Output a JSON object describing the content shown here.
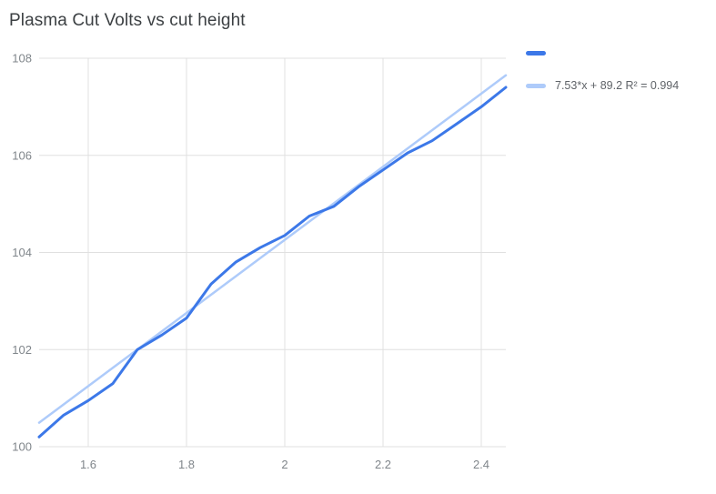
{
  "chart_data": {
    "type": "line",
    "title": "Plasma Cut Volts vs cut height",
    "xlabel": "",
    "ylabel": "",
    "xlim": [
      1.5,
      2.45
    ],
    "ylim": [
      100,
      108
    ],
    "x_ticks": [
      1.6,
      1.8,
      2,
      2.2,
      2.4
    ],
    "x_tick_labels": [
      "1.6",
      "1.8",
      "2",
      "2.2",
      "2.4"
    ],
    "y_ticks": [
      100,
      102,
      104,
      106,
      108
    ],
    "y_tick_labels": [
      "100",
      "102",
      "104",
      "106",
      "108"
    ],
    "grid": true,
    "legend_position": "top-right",
    "x": [
      1.5,
      1.55,
      1.6,
      1.65,
      1.7,
      1.75,
      1.8,
      1.85,
      1.9,
      1.95,
      2.0,
      2.05,
      2.1,
      2.15,
      2.2,
      2.25,
      2.3,
      2.35,
      2.4,
      2.45
    ],
    "series": [
      {
        "name": "",
        "color": "#3c78e8",
        "values": [
          100.2,
          100.65,
          100.95,
          101.3,
          102.0,
          102.3,
          102.65,
          103.35,
          103.8,
          104.1,
          104.35,
          104.75,
          104.95,
          105.35,
          105.7,
          106.05,
          106.3,
          106.65,
          107.0,
          107.4
        ]
      }
    ],
    "trendline": {
      "slope": 7.53,
      "intercept": 89.2,
      "r2": 0.994,
      "label": "7.53*x + 89.2 R² = 0.994",
      "color": "#aecbfa"
    },
    "colors": {
      "grid": "#e0e0e0",
      "tick_text": "#80868b",
      "title_text": "#3c4043",
      "legend_text": "#5f6368"
    }
  },
  "legend": {
    "series_label": "",
    "trendline_label": "7.53*x + 89.2 R² = 0.994"
  }
}
